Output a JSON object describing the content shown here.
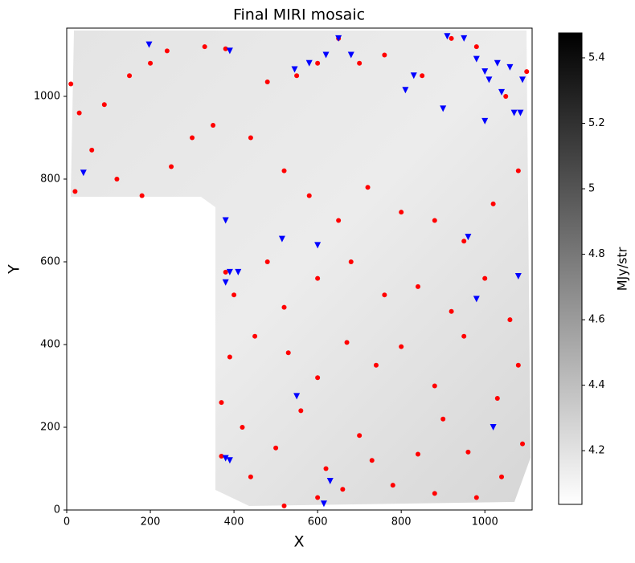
{
  "chart_data": {
    "type": "scatter",
    "title": "Final MIRI mosaic",
    "x_label": "X",
    "y_label": "Y",
    "xlim": [
      0,
      1113
    ],
    "ylim": [
      0,
      1165
    ],
    "xticks": [
      0,
      200,
      400,
      600,
      800,
      1000
    ],
    "yticks": [
      0,
      200,
      400,
      600,
      800,
      1000
    ],
    "series": [
      {
        "color": "#ff0000",
        "marker": "circle",
        "x": [
          10,
          30,
          90,
          150,
          200,
          240,
          330,
          380,
          480,
          550,
          600,
          650,
          700,
          760,
          850,
          920,
          980,
          1050,
          1100,
          20,
          60,
          120,
          180,
          250,
          300,
          350,
          440,
          520,
          580,
          650,
          720,
          800,
          880,
          950,
          1020,
          1080,
          380,
          400,
          480,
          520,
          600,
          680,
          760,
          840,
          920,
          1000,
          1060,
          390,
          450,
          530,
          600,
          670,
          740,
          800,
          880,
          950,
          1030,
          1080,
          370,
          420,
          500,
          560,
          620,
          700,
          780,
          840,
          900,
          960,
          1040,
          1090,
          370,
          440,
          520,
          600,
          660,
          730,
          880,
          980
        ],
        "y": [
          1030,
          960,
          980,
          1050,
          1080,
          1110,
          1120,
          1115,
          1035,
          1050,
          1080,
          1140,
          1080,
          1100,
          1050,
          1140,
          1120,
          1000,
          1060,
          770,
          870,
          800,
          760,
          830,
          900,
          930,
          900,
          820,
          760,
          700,
          780,
          720,
          700,
          650,
          740,
          820,
          575,
          520,
          600,
          490,
          560,
          600,
          520,
          540,
          480,
          560,
          460,
          370,
          420,
          380,
          320,
          405,
          350,
          395,
          300,
          420,
          270,
          350,
          130,
          200,
          150,
          240,
          100,
          180,
          60,
          135,
          220,
          140,
          80,
          160,
          260,
          80,
          10,
          30,
          50,
          120,
          40,
          30
        ]
      },
      {
        "color": "#0000ff",
        "marker": "triangle",
        "x": [
          40,
          197,
          390,
          545,
          580,
          620,
          650,
          680,
          810,
          830,
          900,
          910,
          950,
          980,
          1000,
          1010,
          1030,
          1040,
          1060,
          1070,
          1085,
          1090,
          1000,
          380,
          390,
          380,
          410,
          515,
          600,
          960,
          980,
          1080,
          550,
          1020,
          380,
          390,
          630,
          615
        ],
        "y": [
          815,
          1125,
          1110,
          1065,
          1080,
          1100,
          1140,
          1100,
          1015,
          1050,
          970,
          1145,
          1140,
          1090,
          1060,
          1040,
          1080,
          1010,
          1070,
          960,
          960,
          1040,
          940,
          700,
          575,
          550,
          575,
          655,
          640,
          660,
          510,
          565,
          275,
          200,
          125,
          120,
          70,
          15
        ]
      }
    ],
    "colorbar": {
      "label": "MJy/str",
      "lim": [
        4.036,
        5.476
      ],
      "ticks": [
        4.2,
        4.4,
        4.6,
        4.8,
        5.0,
        5.2,
        5.4
      ]
    }
  }
}
